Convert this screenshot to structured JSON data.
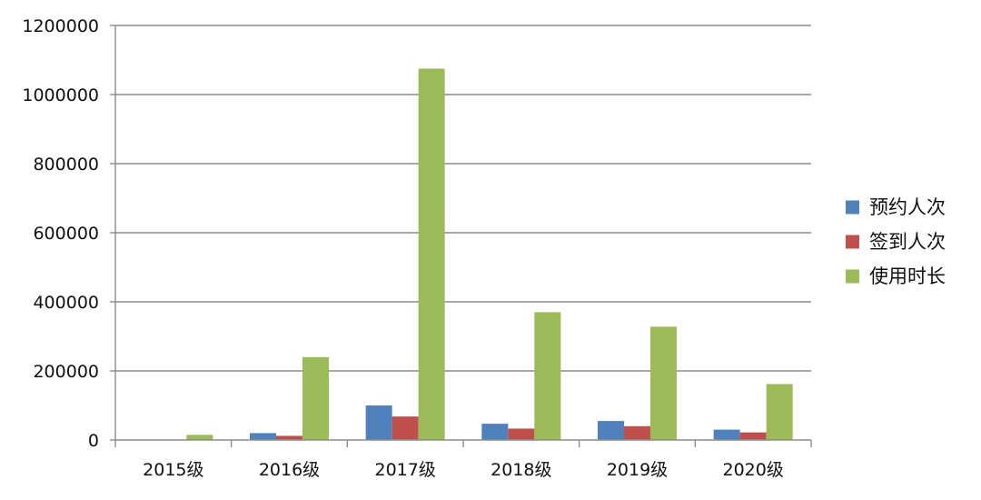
{
  "chart_data": {
    "type": "bar",
    "title": "",
    "xlabel": "",
    "ylabel": "",
    "categories": [
      "2015级",
      "2016级",
      "2017级",
      "2018级",
      "2019级",
      "2020级"
    ],
    "ylim": [
      0,
      1200000
    ],
    "yticks": [
      "0",
      "200000",
      "400000",
      "600000",
      "800000",
      "1000000",
      "1200000"
    ],
    "grid": true,
    "legend_position": "right",
    "series": [
      {
        "name": "预约人次",
        "color": "#4f81bd",
        "values": [
          0,
          20000,
          100000,
          47000,
          55000,
          30000
        ]
      },
      {
        "name": "签到人次",
        "color": "#c0504d",
        "values": [
          0,
          12000,
          68000,
          33000,
          40000,
          22000
        ]
      },
      {
        "name": "使用时长",
        "color": "#9bbb59",
        "values": [
          15000,
          240000,
          1075000,
          370000,
          328000,
          162000
        ]
      }
    ]
  }
}
